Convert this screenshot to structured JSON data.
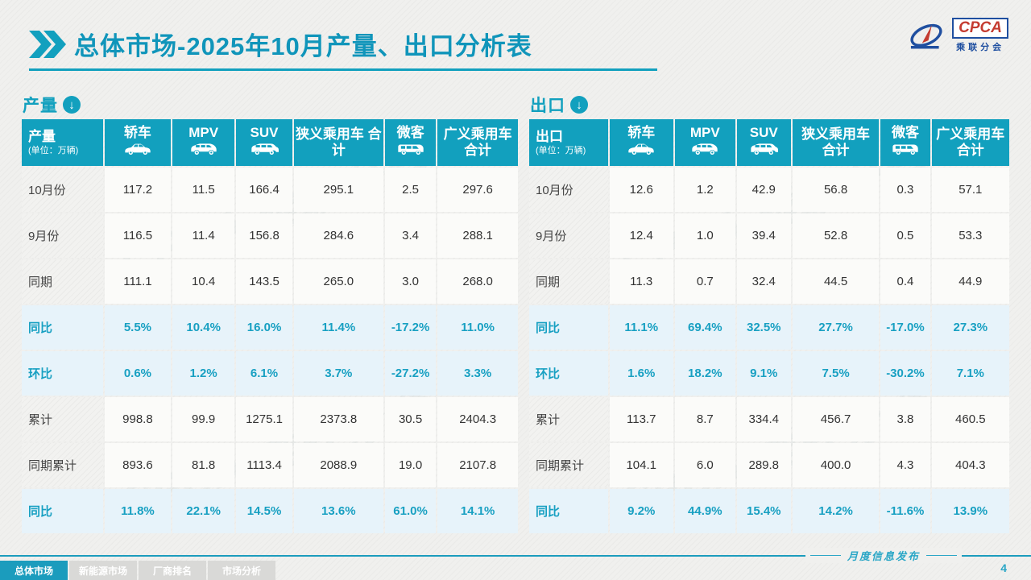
{
  "header": {
    "title": "总体市场-2025年10月产量、出口分析表",
    "title_icon": "double-chevron-icon",
    "logo": {
      "name": "CPCA",
      "sub": "乘联分会",
      "icon": "cpca-swirl-icon"
    }
  },
  "colors": {
    "teal": "#12a0be",
    "teal_text": "#18a0c2",
    "highlight_row_bg": "#e7f3fa",
    "inactive_tab": "#d9d9d7",
    "page_bg": "#f0f0ee"
  },
  "watermark_text": "CPCA 乘联分会",
  "tables": [
    {
      "id": "production",
      "section_label": "产量",
      "section_icon": "circle-down-arrow-icon",
      "corner_title": "产量",
      "corner_unit": "(单位：万辆)",
      "columns": [
        {
          "label": "轿车",
          "icon": "sedan-icon"
        },
        {
          "label": "MPV",
          "icon": "mpv-icon"
        },
        {
          "label": "SUV",
          "icon": "suv-icon"
        },
        {
          "label": "狭义乘用车 合计",
          "icon": null
        },
        {
          "label": "微客",
          "icon": "van-icon"
        },
        {
          "label": "广义乘用车 合计",
          "icon": null
        }
      ],
      "rows": [
        {
          "label": "10月份",
          "highlight": false,
          "values": [
            "117.2",
            "11.5",
            "166.4",
            "295.1",
            "2.5",
            "297.6"
          ]
        },
        {
          "label": "9月份",
          "highlight": false,
          "values": [
            "116.5",
            "11.4",
            "156.8",
            "284.6",
            "3.4",
            "288.1"
          ]
        },
        {
          "label": "同期",
          "highlight": false,
          "values": [
            "111.1",
            "10.4",
            "143.5",
            "265.0",
            "3.0",
            "268.0"
          ]
        },
        {
          "label": "同比",
          "highlight": true,
          "values": [
            "5.5%",
            "10.4%",
            "16.0%",
            "11.4%",
            "-17.2%",
            "11.0%"
          ]
        },
        {
          "label": "环比",
          "highlight": true,
          "values": [
            "0.6%",
            "1.2%",
            "6.1%",
            "3.7%",
            "-27.2%",
            "3.3%"
          ]
        },
        {
          "label": "累计",
          "highlight": false,
          "values": [
            "998.8",
            "99.9",
            "1275.1",
            "2373.8",
            "30.5",
            "2404.3"
          ]
        },
        {
          "label": "同期累计",
          "highlight": false,
          "values": [
            "893.6",
            "81.8",
            "1113.4",
            "2088.9",
            "19.0",
            "2107.8"
          ]
        },
        {
          "label": "同比",
          "highlight": true,
          "values": [
            "11.8%",
            "22.1%",
            "14.5%",
            "13.6%",
            "61.0%",
            "14.1%"
          ]
        }
      ]
    },
    {
      "id": "export",
      "section_label": "出口",
      "section_icon": "circle-down-arrow-icon",
      "corner_title": "出口",
      "corner_unit": "(单位：万辆)",
      "columns": [
        {
          "label": "轿车",
          "icon": "sedan-icon"
        },
        {
          "label": "MPV",
          "icon": "mpv-icon"
        },
        {
          "label": "SUV",
          "icon": "suv-icon"
        },
        {
          "label": "狭义乘用车 合计",
          "icon": null
        },
        {
          "label": "微客",
          "icon": "van-icon"
        },
        {
          "label": "广义乘用车 合计",
          "icon": null
        }
      ],
      "rows": [
        {
          "label": "10月份",
          "highlight": false,
          "values": [
            "12.6",
            "1.2",
            "42.9",
            "56.8",
            "0.3",
            "57.1"
          ]
        },
        {
          "label": "9月份",
          "highlight": false,
          "values": [
            "12.4",
            "1.0",
            "39.4",
            "52.8",
            "0.5",
            "53.3"
          ]
        },
        {
          "label": "同期",
          "highlight": false,
          "values": [
            "11.3",
            "0.7",
            "32.4",
            "44.5",
            "0.4",
            "44.9"
          ]
        },
        {
          "label": "同比",
          "highlight": true,
          "values": [
            "11.1%",
            "69.4%",
            "32.5%",
            "27.7%",
            "-17.0%",
            "27.3%"
          ]
        },
        {
          "label": "环比",
          "highlight": true,
          "values": [
            "1.6%",
            "18.2%",
            "9.1%",
            "7.5%",
            "-30.2%",
            "7.1%"
          ]
        },
        {
          "label": "累计",
          "highlight": false,
          "values": [
            "113.7",
            "8.7",
            "334.4",
            "456.7",
            "3.8",
            "460.5"
          ]
        },
        {
          "label": "同期累计",
          "highlight": false,
          "values": [
            "104.1",
            "6.0",
            "289.8",
            "400.0",
            "4.3",
            "404.3"
          ]
        },
        {
          "label": "同比",
          "highlight": true,
          "values": [
            "9.2%",
            "44.9%",
            "15.4%",
            "14.2%",
            "-11.6%",
            "13.9%"
          ]
        }
      ]
    }
  ],
  "footer": {
    "tabs": [
      {
        "label": "总体市场",
        "active": true
      },
      {
        "label": "新能源市场",
        "active": false
      },
      {
        "label": "厂商排名",
        "active": false
      },
      {
        "label": "市场分析",
        "active": false
      }
    ],
    "ribbon": "月度信息发布",
    "page_number": "4"
  }
}
